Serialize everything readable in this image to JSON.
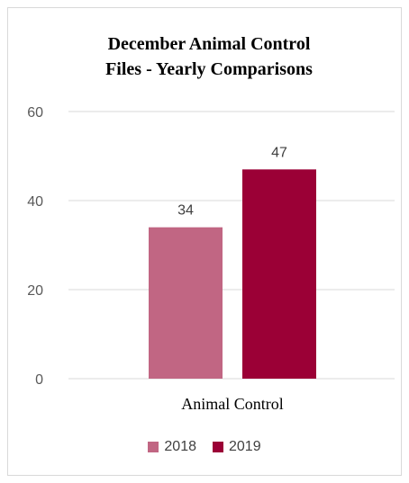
{
  "chart_data": {
    "type": "bar",
    "title": "December Animal Control Files - Yearly Comparisons",
    "title_lines": [
      "December Animal Control",
      "Files - Yearly Comparisons"
    ],
    "categories": [
      "Animal Control"
    ],
    "series": [
      {
        "name": "2018",
        "values": [
          34
        ],
        "color": "#c16683"
      },
      {
        "name": "2019",
        "values": [
          47
        ],
        "color": "#9b0036"
      }
    ],
    "y_ticks": [
      "0",
      "20",
      "40",
      "60"
    ],
    "ylim": [
      0,
      60
    ],
    "grid": true,
    "legend_position": "bottom",
    "data_labels": true
  }
}
